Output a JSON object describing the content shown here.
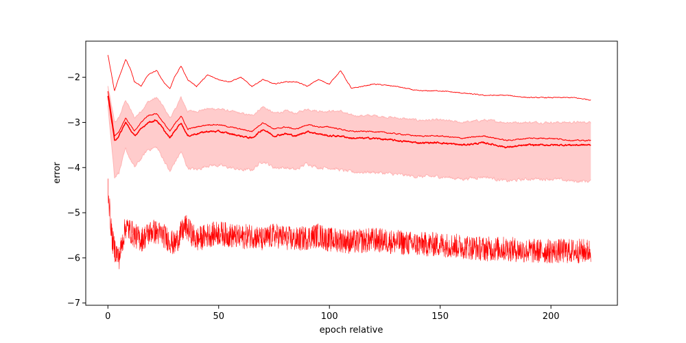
{
  "chart_data": {
    "type": "line",
    "title": "",
    "xlabel": "epoch relative",
    "ylabel": "error",
    "xlim": [
      -10,
      230
    ],
    "ylim": [
      -7.05,
      -1.2
    ],
    "xticks": [
      0,
      50,
      100,
      150,
      200
    ],
    "yticks": [
      -7,
      -6,
      -5,
      -4,
      -3,
      -2
    ],
    "grid": false,
    "legend": "none",
    "colors": {
      "line": "#ff0000",
      "band": "#ffcccc",
      "band_edge": "#ffb3b3"
    },
    "series": [
      {
        "role": "upper",
        "x": [
          0,
          3,
          5,
          8,
          10,
          12,
          15,
          18,
          22,
          25,
          28,
          30,
          33,
          36,
          40,
          45,
          50,
          55,
          60,
          65,
          70,
          75,
          80,
          85,
          90,
          95,
          100,
          105,
          110,
          120,
          130,
          140,
          150,
          160,
          170,
          180,
          190,
          200,
          210,
          218
        ],
        "values": [
          -1.5,
          -2.3,
          -2.0,
          -1.6,
          -1.8,
          -2.1,
          -2.2,
          -1.95,
          -1.85,
          -2.1,
          -2.25,
          -2.0,
          -1.75,
          -2.05,
          -2.2,
          -1.95,
          -2.05,
          -2.1,
          -2.0,
          -2.2,
          -2.05,
          -2.15,
          -2.1,
          -2.1,
          -2.2,
          -2.05,
          -2.15,
          -1.85,
          -2.25,
          -2.15,
          -2.2,
          -2.3,
          -2.3,
          -2.35,
          -2.4,
          -2.4,
          -2.45,
          -2.45,
          -2.45,
          -2.5
        ]
      },
      {
        "role": "mean-upper",
        "x": [
          0,
          3,
          5,
          8,
          10,
          12,
          15,
          18,
          22,
          25,
          28,
          30,
          33,
          36,
          40,
          45,
          50,
          55,
          60,
          65,
          70,
          75,
          80,
          85,
          90,
          95,
          100,
          105,
          110,
          120,
          130,
          140,
          150,
          160,
          170,
          180,
          190,
          200,
          210,
          218
        ],
        "values": [
          -2.3,
          -3.3,
          -3.2,
          -2.9,
          -3.05,
          -3.2,
          -3.0,
          -2.85,
          -2.8,
          -3.0,
          -3.2,
          -3.05,
          -2.85,
          -3.15,
          -3.1,
          -3.05,
          -3.05,
          -3.1,
          -3.15,
          -3.2,
          -3.0,
          -3.15,
          -3.1,
          -3.15,
          -3.05,
          -3.1,
          -3.1,
          -3.15,
          -3.2,
          -3.2,
          -3.25,
          -3.3,
          -3.3,
          -3.35,
          -3.3,
          -3.4,
          -3.35,
          -3.35,
          -3.4,
          -3.4
        ]
      },
      {
        "role": "mean",
        "x": [
          0,
          3,
          5,
          8,
          10,
          12,
          15,
          18,
          22,
          25,
          28,
          30,
          33,
          36,
          40,
          45,
          50,
          55,
          60,
          65,
          70,
          75,
          80,
          85,
          90,
          95,
          100,
          105,
          110,
          120,
          130,
          140,
          150,
          160,
          170,
          180,
          190,
          200,
          210,
          218
        ],
        "values": [
          -2.4,
          -3.4,
          -3.3,
          -3.0,
          -3.15,
          -3.3,
          -3.15,
          -3.0,
          -2.95,
          -3.15,
          -3.35,
          -3.2,
          -3.0,
          -3.3,
          -3.25,
          -3.2,
          -3.2,
          -3.25,
          -3.3,
          -3.35,
          -3.15,
          -3.3,
          -3.25,
          -3.3,
          -3.2,
          -3.25,
          -3.3,
          -3.3,
          -3.35,
          -3.35,
          -3.4,
          -3.45,
          -3.45,
          -3.5,
          -3.45,
          -3.55,
          -3.5,
          -3.5,
          -3.5,
          -3.5
        ]
      },
      {
        "role": "band-upper",
        "x": [
          0,
          3,
          5,
          8,
          10,
          12,
          15,
          18,
          22,
          25,
          28,
          30,
          33,
          36,
          40,
          45,
          50,
          55,
          60,
          65,
          70,
          75,
          80,
          85,
          90,
          95,
          100,
          105,
          110,
          120,
          130,
          140,
          150,
          160,
          170,
          180,
          190,
          200,
          210,
          218
        ],
        "values": [
          -2.2,
          -3.0,
          -2.9,
          -2.5,
          -2.7,
          -2.9,
          -2.75,
          -2.55,
          -2.45,
          -2.65,
          -2.9,
          -2.75,
          -2.45,
          -2.75,
          -2.75,
          -2.7,
          -2.7,
          -2.75,
          -2.8,
          -2.85,
          -2.65,
          -2.8,
          -2.75,
          -2.8,
          -2.7,
          -2.75,
          -2.75,
          -2.75,
          -2.85,
          -2.85,
          -2.9,
          -2.95,
          -2.95,
          -3.0,
          -2.95,
          -3.0,
          -3.0,
          -3.0,
          -3.0,
          -3.0
        ]
      },
      {
        "role": "band-lower",
        "x": [
          0,
          3,
          5,
          8,
          10,
          12,
          15,
          18,
          22,
          25,
          28,
          30,
          33,
          36,
          40,
          45,
          50,
          55,
          60,
          65,
          70,
          75,
          80,
          85,
          90,
          95,
          100,
          105,
          110,
          120,
          130,
          140,
          150,
          160,
          170,
          180,
          190,
          200,
          210,
          218
        ],
        "values": [
          -2.6,
          -4.2,
          -4.1,
          -3.6,
          -3.8,
          -4.0,
          -3.8,
          -3.6,
          -3.55,
          -3.8,
          -4.1,
          -3.9,
          -3.65,
          -4.0,
          -4.05,
          -3.95,
          -3.95,
          -4.0,
          -4.05,
          -4.05,
          -3.85,
          -4.0,
          -4.0,
          -4.05,
          -3.9,
          -4.0,
          -4.0,
          -4.05,
          -4.1,
          -4.1,
          -4.15,
          -4.2,
          -4.2,
          -4.25,
          -4.2,
          -4.3,
          -4.25,
          -4.25,
          -4.3,
          -4.3
        ]
      },
      {
        "role": "lower",
        "x": [
          0,
          1,
          2,
          3,
          5,
          8,
          10,
          12,
          15,
          20,
          25,
          30,
          35,
          40,
          45,
          50,
          55,
          60,
          65,
          70,
          75,
          80,
          85,
          90,
          95,
          100,
          105,
          110,
          120,
          130,
          140,
          150,
          160,
          170,
          180,
          190,
          200,
          210,
          218
        ],
        "values": [
          -4.4,
          -5.1,
          -5.6,
          -5.8,
          -6.0,
          -5.3,
          -5.4,
          -5.5,
          -5.6,
          -5.4,
          -5.5,
          -5.7,
          -5.3,
          -5.6,
          -5.5,
          -5.45,
          -5.5,
          -5.55,
          -5.5,
          -5.6,
          -5.5,
          -5.55,
          -5.6,
          -5.55,
          -5.5,
          -5.6,
          -5.6,
          -5.65,
          -5.6,
          -5.65,
          -5.7,
          -5.7,
          -5.75,
          -5.8,
          -5.8,
          -5.85,
          -5.85,
          -5.85,
          -5.85
        ]
      }
    ]
  }
}
